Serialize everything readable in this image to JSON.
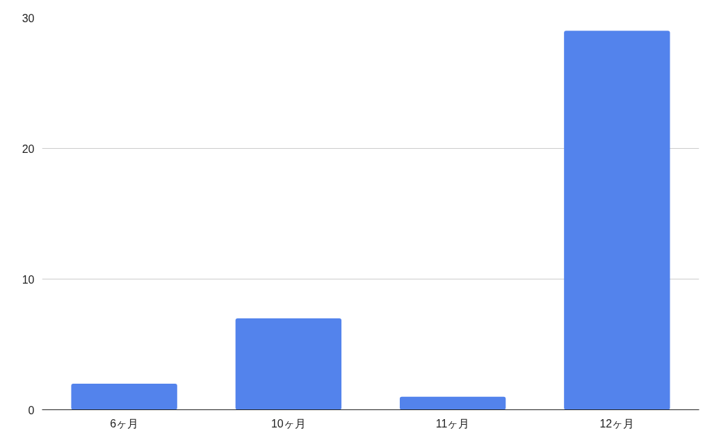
{
  "chart_data": {
    "type": "bar",
    "categories": [
      "6ヶ月",
      "10ヶ月",
      "11ヶ月",
      "12ヶ月"
    ],
    "values": [
      2,
      7,
      1,
      29
    ],
    "color": "#5383ec",
    "ylim": [
      0,
      30
    ],
    "yticks": [
      0,
      10,
      20,
      30
    ],
    "grid": "y"
  }
}
